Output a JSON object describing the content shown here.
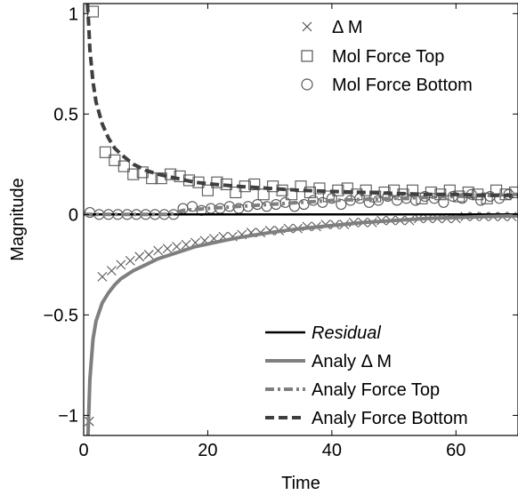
{
  "chart_data": {
    "type": "line",
    "xlabel": "Time",
    "ylabel": "Magnitude",
    "xlim": [
      0,
      70
    ],
    "ylim": [
      -1.1,
      1.05
    ],
    "xticks": [
      0,
      20,
      40,
      60
    ],
    "yticks": [
      -1,
      -0.5,
      0,
      0.5,
      1
    ],
    "xtick_labels": [
      "0",
      "20",
      "40",
      "60"
    ],
    "ytick_labels": [
      "−1",
      "−0.5",
      "0",
      "0.5",
      "1"
    ],
    "grid": false,
    "legend_top": {
      "placement": "top-right",
      "entries": [
        {
          "label": "Δ M",
          "marker": "x"
        },
        {
          "label": "Mol Force Top",
          "marker": "square"
        },
        {
          "label": "Mol Force Bottom",
          "marker": "circle"
        }
      ]
    },
    "legend_bottom": {
      "placement": "bottom-right",
      "entries": [
        {
          "label": "Residual",
          "style": "solid-black",
          "italic": true
        },
        {
          "label": "Analy Δ M",
          "style": "solid-gray"
        },
        {
          "label": "Analy Force Top",
          "style": "dashdot-gray"
        },
        {
          "label": "Analy Force Bottom",
          "style": "dashed-darkgray"
        }
      ]
    },
    "colors": {
      "residual": "#000000",
      "analy_dm": "#7f7f7f",
      "analy_force_top": "#7f7f7f",
      "analy_force_bottom": "#3f3f3f",
      "markers": "#555555"
    },
    "series": [
      {
        "name": "Δ M",
        "kind": "marker",
        "marker": "x",
        "x": [
          0.9,
          3,
          4.5,
          6,
          7.5,
          9,
          10.5,
          12,
          13.5,
          15,
          16.5,
          18,
          19.5,
          21,
          22.5,
          24,
          25.5,
          27,
          28.5,
          30,
          31.5,
          33,
          34.5,
          36,
          37.5,
          39,
          40.5,
          42,
          43.5,
          45,
          46.5,
          48,
          49.5,
          51,
          52.5,
          54,
          55.5,
          57,
          58.5,
          60,
          61.5,
          63,
          64.5,
          66,
          67.5,
          69
        ],
        "y": [
          -1.03,
          -0.31,
          -0.28,
          -0.25,
          -0.23,
          -0.21,
          -0.2,
          -0.18,
          -0.17,
          -0.16,
          -0.15,
          -0.14,
          -0.13,
          -0.12,
          -0.11,
          -0.11,
          -0.1,
          -0.09,
          -0.09,
          -0.08,
          -0.08,
          -0.07,
          -0.07,
          -0.06,
          -0.06,
          -0.05,
          -0.05,
          -0.05,
          -0.04,
          -0.04,
          -0.04,
          -0.03,
          -0.03,
          -0.03,
          -0.03,
          -0.02,
          -0.02,
          -0.02,
          -0.02,
          -0.02,
          -0.01,
          -0.01,
          -0.01,
          -0.01,
          -0.01,
          -0.01
        ]
      },
      {
        "name": "Mol Force Top",
        "kind": "marker",
        "marker": "square",
        "x": [
          1.5,
          3.5,
          5,
          6.5,
          8,
          9.5,
          11,
          12.5,
          14,
          15.5,
          17,
          18.5,
          20,
          21.5,
          23,
          24.5,
          26,
          27.5,
          29,
          30.5,
          32,
          33.5,
          35,
          36.5,
          38,
          39.5,
          41,
          42.5,
          44,
          45.5,
          47,
          48.5,
          50,
          51.5,
          53,
          54.5,
          56,
          57.5,
          59,
          60.5,
          62,
          63.5,
          65,
          66.5,
          68,
          69.5
        ],
        "y": [
          1.01,
          0.31,
          0.27,
          0.24,
          0.2,
          0.21,
          0.18,
          0.18,
          0.2,
          0.19,
          0.17,
          0.16,
          0.12,
          0.16,
          0.15,
          0.11,
          0.14,
          0.15,
          0.1,
          0.14,
          0.12,
          0.1,
          0.14,
          0.11,
          0.13,
          0.09,
          0.12,
          0.13,
          0.1,
          0.12,
          0.09,
          0.11,
          0.12,
          0.1,
          0.12,
          0.08,
          0.11,
          0.1,
          0.12,
          0.09,
          0.11,
          0.1,
          0.08,
          0.12,
          0.1,
          0.11
        ]
      },
      {
        "name": "Mol Force Bottom",
        "kind": "marker",
        "marker": "circle",
        "x": [
          1,
          2.5,
          4,
          5.5,
          7,
          8.5,
          10,
          11.5,
          13,
          14.5,
          16,
          17.5,
          19,
          20.5,
          22,
          23.5,
          25,
          26.5,
          28,
          29.5,
          31,
          32.5,
          34,
          35.5,
          37,
          38.5,
          40,
          41.5,
          43,
          44.5,
          46,
          47.5,
          49,
          50.5,
          52,
          53.5,
          55,
          56.5,
          58,
          59.5,
          61,
          62.5,
          64,
          65.5,
          67,
          68.5
        ],
        "y": [
          0.01,
          0.0,
          0.0,
          0.0,
          0.0,
          0.0,
          0.0,
          0.0,
          0.0,
          0.0,
          0.03,
          0.04,
          0.02,
          0.03,
          0.03,
          0.04,
          0.03,
          0.04,
          0.05,
          0.04,
          0.05,
          0.06,
          0.04,
          0.05,
          0.07,
          0.06,
          0.08,
          0.05,
          0.07,
          0.08,
          0.06,
          0.07,
          0.09,
          0.07,
          0.08,
          0.07,
          0.09,
          0.08,
          0.06,
          0.09,
          0.08,
          0.1,
          0.07,
          0.09,
          0.08,
          0.1
        ]
      },
      {
        "name": "Residual",
        "kind": "line",
        "style": "solid-black",
        "x": [
          0,
          70
        ],
        "y": [
          0,
          0
        ]
      },
      {
        "name": "Analy Δ M",
        "kind": "line",
        "style": "solid-gray",
        "x": [
          0.7,
          1,
          1.5,
          2,
          3,
          4,
          5,
          6,
          8,
          10,
          12,
          15,
          18,
          21,
          25,
          30,
          35,
          40,
          45,
          50,
          55,
          60,
          65,
          70
        ],
        "y": [
          -1.1,
          -0.82,
          -0.62,
          -0.53,
          -0.44,
          -0.39,
          -0.35,
          -0.32,
          -0.28,
          -0.25,
          -0.22,
          -0.19,
          -0.16,
          -0.14,
          -0.115,
          -0.09,
          -0.07,
          -0.055,
          -0.04,
          -0.03,
          -0.02,
          -0.015,
          -0.01,
          -0.007
        ]
      },
      {
        "name": "Analy Force Top",
        "kind": "line",
        "style": "dashdot-gray",
        "x": [
          0,
          10,
          14,
          16,
          18,
          20,
          25,
          30,
          35,
          40,
          45,
          50,
          55,
          60,
          65,
          70
        ],
        "y": [
          0.0,
          0.0,
          0.0,
          0.02,
          0.025,
          0.03,
          0.04,
          0.05,
          0.06,
          0.07,
          0.075,
          0.08,
          0.085,
          0.09,
          0.095,
          0.1
        ]
      },
      {
        "name": "Analy Force Bottom",
        "kind": "line",
        "style": "dashed-darkgray",
        "x": [
          0.6,
          0.8,
          1,
          1.5,
          2,
          3,
          4,
          5,
          6,
          8,
          10,
          12,
          15,
          18,
          21,
          25,
          30,
          35,
          40,
          45,
          50,
          55,
          60,
          65,
          70
        ],
        "y": [
          1.05,
          0.95,
          0.82,
          0.66,
          0.56,
          0.45,
          0.38,
          0.33,
          0.3,
          0.25,
          0.22,
          0.2,
          0.18,
          0.16,
          0.15,
          0.14,
          0.13,
          0.12,
          0.115,
          0.11,
          0.105,
          0.1,
          0.1,
          0.095,
          0.095
        ]
      }
    ]
  }
}
